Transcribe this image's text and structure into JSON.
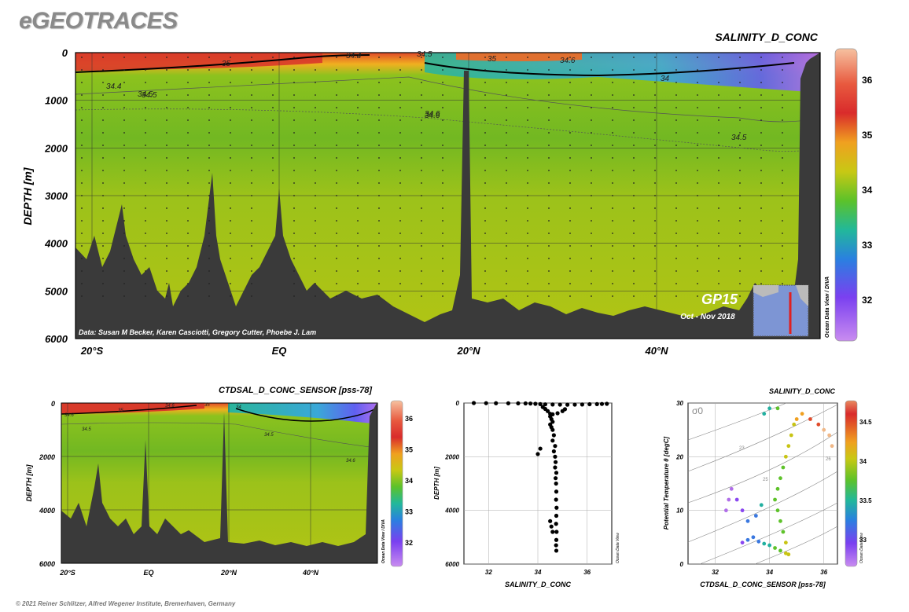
{
  "logo": "eGEOTRACES",
  "copyright": "© 2021 Reiner Schlitzer, Alfred Wegener Institute, Bremerhaven, Germany",
  "colors": {
    "land": "#3a3a3a",
    "sea_mid": "#9ac21c",
    "salty": "#d9302a",
    "fresh": "#9b4dff"
  },
  "chart_data": [
    {
      "type": "heatmap",
      "title": "SALINITY_D_CONC",
      "ylabel": "DEPTH [m]",
      "ylim": [
        6000,
        0
      ],
      "yticks": [
        "0",
        "1000",
        "2000",
        "3000",
        "4000",
        "5000",
        "6000"
      ],
      "xticks": [
        "20°S",
        "EQ",
        "20°N",
        "40°N"
      ],
      "contour_labels": [
        "34.4",
        "34.5",
        "34.5",
        "35",
        "34.6",
        "34",
        "34.4",
        "34.5",
        "34.6",
        "34.5",
        "34.6",
        "35"
      ],
      "colorbar": {
        "ticks": [
          "36",
          "35",
          "34",
          "33",
          "32"
        ],
        "range": [
          31.5,
          36.5
        ]
      },
      "credit": "Data: Susan M Becker, Karen Casciotti, Gregory Cutter, Phoebe J. Lam",
      "side_label": "Ocean Data View / DIVA",
      "cruise": "GP15",
      "period": "Oct - Nov 2018"
    },
    {
      "type": "heatmap",
      "title": "CTDSAL_D_CONC_SENSOR [pss-78]",
      "ylabel": "DEPTH [m]",
      "ylim": [
        6000,
        0
      ],
      "yticks": [
        "0",
        "2000",
        "4000",
        "6000"
      ],
      "xticks": [
        "20°S",
        "EQ",
        "20°N",
        "40°N"
      ],
      "contour_labels": [
        "34.6",
        "34.5",
        "35",
        "34.6",
        "35",
        "34",
        "34.5",
        "34.6"
      ],
      "colorbar": {
        "ticks": [
          "36",
          "35",
          "34",
          "33",
          "32"
        ],
        "range": [
          31.5,
          36.5
        ]
      },
      "side_label": "Ocean Data View / DIVA"
    },
    {
      "type": "scatter",
      "xlabel": "SALINITY_D_CONC",
      "ylabel": "DEPTH [m]",
      "xlim": [
        31,
        37
      ],
      "ylim": [
        6000,
        0
      ],
      "xticks": [
        "32",
        "34",
        "36"
      ],
      "yticks": [
        "0",
        "2000",
        "4000",
        "6000"
      ],
      "side_label": "Ocean Data View",
      "points": [
        [
          31.4,
          0
        ],
        [
          31.9,
          5
        ],
        [
          32.3,
          8
        ],
        [
          32.8,
          10
        ],
        [
          33.2,
          12
        ],
        [
          33.5,
          15
        ],
        [
          33.7,
          20
        ],
        [
          33.9,
          30
        ],
        [
          34.1,
          40
        ],
        [
          34.3,
          50
        ],
        [
          34.6,
          55
        ],
        [
          34.9,
          60
        ],
        [
          35.2,
          62
        ],
        [
          35.5,
          60
        ],
        [
          35.8,
          55
        ],
        [
          36.1,
          45
        ],
        [
          36.4,
          40
        ],
        [
          36.6,
          35
        ],
        [
          36.8,
          30
        ],
        [
          34.2,
          150
        ],
        [
          34.3,
          220
        ],
        [
          34.4,
          300
        ],
        [
          34.5,
          400
        ],
        [
          34.6,
          420
        ],
        [
          34.8,
          380
        ],
        [
          35.0,
          300
        ],
        [
          35.1,
          230
        ],
        [
          34.5,
          500
        ],
        [
          34.55,
          600
        ],
        [
          34.6,
          700
        ],
        [
          34.5,
          800
        ],
        [
          34.55,
          900
        ],
        [
          34.6,
          1000
        ],
        [
          34.65,
          1200
        ],
        [
          34.6,
          1400
        ],
        [
          34.7,
          1600
        ],
        [
          34.65,
          1800
        ],
        [
          34.7,
          2000
        ],
        [
          34.72,
          2200
        ],
        [
          34.7,
          2400
        ],
        [
          34.75,
          2600
        ],
        [
          34.72,
          2800
        ],
        [
          34.74,
          3000
        ],
        [
          34.75,
          3300
        ],
        [
          34.74,
          3600
        ],
        [
          34.76,
          3900
        ],
        [
          34.75,
          4200
        ],
        [
          34.74,
          4500
        ],
        [
          34.76,
          4800
        ],
        [
          34.75,
          5100
        ],
        [
          34.74,
          5300
        ],
        [
          34.75,
          5500
        ],
        [
          34.0,
          1900
        ],
        [
          34.1,
          1700
        ],
        [
          34.55,
          4600
        ],
        [
          34.6,
          4800
        ],
        [
          34.5,
          4400
        ]
      ]
    },
    {
      "type": "scatter",
      "title": "SALINITY_D_CONC",
      "xlabel": "CTDSAL_D_CONC_SENSOR [pss-78]",
      "ylabel": "Potential Temperature θ [degC]",
      "xlim": [
        31,
        36.5
      ],
      "ylim": [
        0,
        30
      ],
      "xticks": [
        "32",
        "34",
        "36"
      ],
      "yticks": [
        "0",
        "10",
        "20",
        "30"
      ],
      "isopycnal_label": "σ0",
      "isopycnals": [
        "23",
        "25",
        "26"
      ],
      "colorbar": {
        "ticks": [
          "34.5",
          "34",
          "33.5",
          "33"
        ],
        "range": [
          32.7,
          34.7
        ]
      },
      "side_label": "Ocean Data View",
      "points": [
        [
          33.0,
          4
        ],
        [
          33.2,
          4.5
        ],
        [
          33.4,
          5
        ],
        [
          33.6,
          4.2
        ],
        [
          33.8,
          3.8
        ],
        [
          34.0,
          3.5
        ],
        [
          34.2,
          3
        ],
        [
          34.4,
          2.5
        ],
        [
          34.6,
          2
        ],
        [
          34.7,
          1.8
        ],
        [
          34.6,
          4
        ],
        [
          34.5,
          6
        ],
        [
          34.4,
          8
        ],
        [
          34.3,
          10
        ],
        [
          34.2,
          12
        ],
        [
          34.3,
          14
        ],
        [
          34.4,
          16
        ],
        [
          34.5,
          18
        ],
        [
          34.6,
          20
        ],
        [
          34.7,
          22
        ],
        [
          34.8,
          24
        ],
        [
          34.9,
          26
        ],
        [
          35.0,
          27
        ],
        [
          35.2,
          28
        ],
        [
          35.5,
          27
        ],
        [
          35.8,
          26
        ],
        [
          36.0,
          25
        ],
        [
          36.2,
          24
        ],
        [
          36.3,
          22
        ],
        [
          32.6,
          14
        ],
        [
          32.8,
          12
        ],
        [
          33.0,
          10
        ],
        [
          33.2,
          8
        ],
        [
          32.4,
          10
        ],
        [
          32.5,
          12
        ],
        [
          33.8,
          28
        ],
        [
          34.0,
          29
        ],
        [
          34.3,
          29
        ],
        [
          33.5,
          9
        ],
        [
          33.7,
          11
        ]
      ]
    }
  ]
}
